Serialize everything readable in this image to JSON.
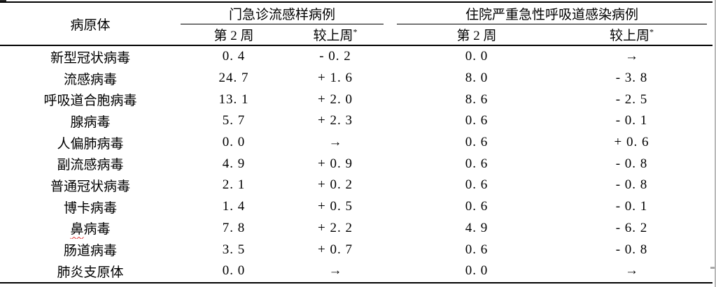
{
  "page": {
    "background_color": "#ffffff",
    "rule_color": "#000000",
    "text_color": "#000000",
    "spell_underline_color": "#e02b2b"
  },
  "table": {
    "pathogen_header": "病原体",
    "groups": [
      {
        "label": "门急诊流感样病例",
        "week_col": "第 2 周",
        "change_col": "较上周",
        "footnote_symbol": "*"
      },
      {
        "label": "住院严重急性呼吸道感染病例",
        "week_col": "第 2 周",
        "change_col": "较上周",
        "footnote_symbol": "*"
      }
    ],
    "no_change_symbol": "→",
    "rows": [
      {
        "pathogen": "新型冠状病毒",
        "ili_week2": "0.4",
        "ili_change": "- 0.2",
        "sari_week2": "0.0",
        "sari_change": "→"
      },
      {
        "pathogen": "流感病毒",
        "ili_week2": "24.7",
        "ili_change": "+ 1.6",
        "sari_week2": "8.0",
        "sari_change": "- 3.8"
      },
      {
        "pathogen": "呼吸道合胞病毒",
        "ili_week2": "13.1",
        "ili_change": "+ 2.0",
        "sari_week2": "8.6",
        "sari_change": "- 2.5"
      },
      {
        "pathogen": "腺病毒",
        "ili_week2": "5.7",
        "ili_change": "+ 2.3",
        "sari_week2": "0.6",
        "sari_change": "- 0.1"
      },
      {
        "pathogen": "人偏肺病毒",
        "ili_week2": "0.0",
        "ili_change": "→",
        "sari_week2": "0.6",
        "sari_change": "+ 0.6"
      },
      {
        "pathogen": "副流感病毒",
        "ili_week2": "4.9",
        "ili_change": "+ 0.9",
        "sari_week2": "0.6",
        "sari_change": "- 0.8"
      },
      {
        "pathogen": "普通冠状病毒",
        "ili_week2": "2.1",
        "ili_change": "+ 0.2",
        "sari_week2": "0.6",
        "sari_change": "- 0.8"
      },
      {
        "pathogen": "博卡病毒",
        "ili_week2": "1.4",
        "ili_change": "+ 0.5",
        "sari_week2": "0.6",
        "sari_change": "- 0.1"
      },
      {
        "pathogen": "鼻病毒",
        "spellcheck_marked": "鼻",
        "ili_week2": "7.8",
        "ili_change": "+ 2.2",
        "sari_week2": "4.9",
        "sari_change": "- 6.2"
      },
      {
        "pathogen": "肠道病毒",
        "ili_week2": "3.5",
        "ili_change": "+ 0.7",
        "sari_week2": "0.6",
        "sari_change": "- 0.8"
      },
      {
        "pathogen": "肺炎支原体",
        "ili_week2": "0.0",
        "ili_change": "→",
        "sari_week2": "0.0",
        "sari_change": "→"
      }
    ]
  }
}
